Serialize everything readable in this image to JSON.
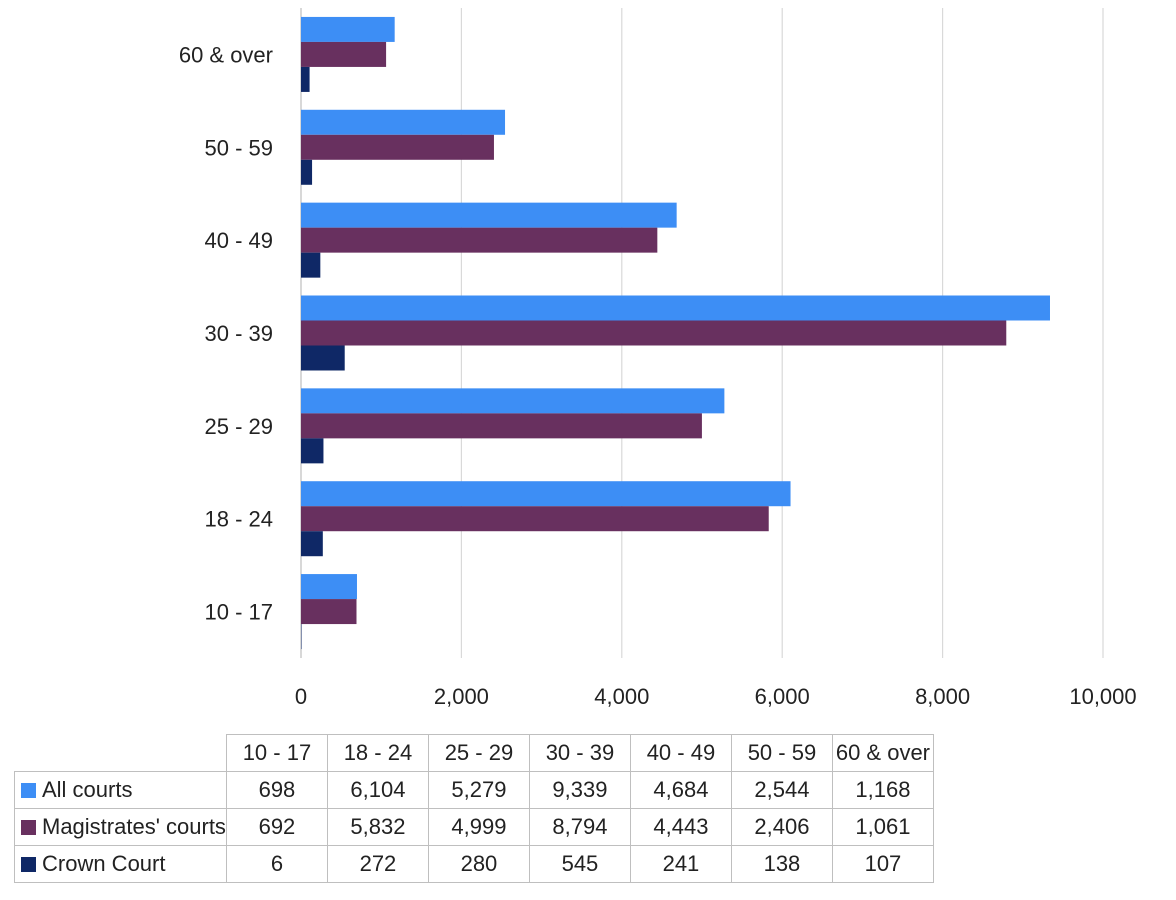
{
  "chart_data": {
    "type": "bar",
    "orientation": "horizontal",
    "title": "",
    "xlabel": "",
    "ylabel": "",
    "categories": [
      "10 - 17",
      "18 - 24",
      "25 - 29",
      "30 - 39",
      "40 - 49",
      "50 - 59",
      "60 & over"
    ],
    "series": [
      {
        "name": "All courts",
        "color": "#3d8ef5",
        "values": [
          698,
          6104,
          5279,
          9339,
          4684,
          2544,
          1168
        ]
      },
      {
        "name": "Magistrates' courts",
        "color": "#68305f",
        "values": [
          692,
          5832,
          4999,
          8794,
          4443,
          2406,
          1061
        ]
      },
      {
        "name": "Crown Court",
        "color": "#0f2866",
        "values": [
          6,
          272,
          280,
          545,
          241,
          138,
          107
        ]
      }
    ],
    "xlim": [
      0,
      10000
    ],
    "xticks": [
      0,
      2000,
      4000,
      6000,
      8000,
      10000
    ],
    "xtick_labels": [
      "0",
      "2,000",
      "4,000",
      "6,000",
      "8,000",
      "10,000"
    ],
    "grid": true,
    "legend": "data-table-below",
    "data_table": {
      "rows": [
        {
          "name": "All courts",
          "cells": [
            "698",
            "6,104",
            "5,279",
            "9,339",
            "4,684",
            "2,544",
            "1,168"
          ]
        },
        {
          "name": "Magistrates' courts",
          "cells": [
            "692",
            "5,832",
            "4,999",
            "8,794",
            "4,443",
            "2,406",
            "1,061"
          ]
        },
        {
          "name": "Crown Court",
          "cells": [
            "6",
            "272",
            "280",
            "545",
            "241",
            "138",
            "107"
          ]
        }
      ]
    }
  }
}
